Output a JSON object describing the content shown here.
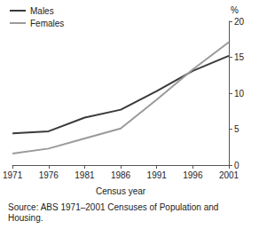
{
  "chart_data": {
    "type": "line",
    "xlabel": "Census year",
    "ylabel": "%",
    "note": "Source: ABS 1971–2001 Censuses of Population and Housing.",
    "categories": [
      "1971",
      "1976",
      "1981",
      "1986",
      "1991",
      "1996",
      "2001"
    ],
    "series": [
      {
        "name": "Males",
        "color": "#3a3a3a",
        "values": [
          4.4,
          4.7,
          6.6,
          7.7,
          10.3,
          13.1,
          15.2
        ]
      },
      {
        "name": "Females",
        "color": "#9a9a9a",
        "values": [
          1.6,
          2.3,
          3.7,
          5.1,
          9.1,
          13.3,
          17.1
        ]
      }
    ],
    "ylim": [
      0,
      20
    ],
    "yticks": [
      0,
      5,
      10,
      15,
      20
    ],
    "grid": false,
    "legend": "top-left"
  }
}
